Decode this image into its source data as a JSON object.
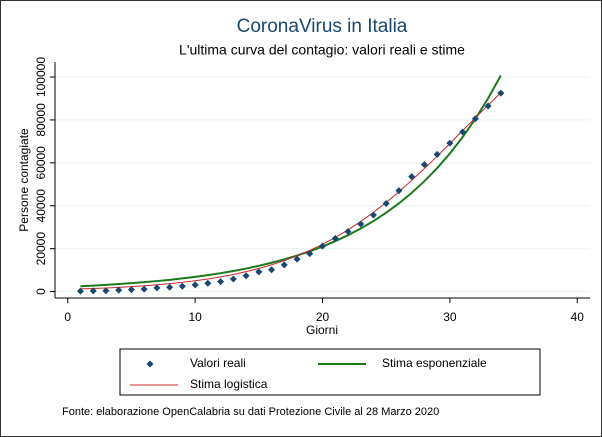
{
  "chart_data": {
    "type": "line",
    "title": "CoronaVirus in Italia",
    "subtitle": "L'ultima curva del contagio: valori reali e stime",
    "x_label": "Giorni",
    "y_label": "Persone contagiate",
    "note": "Fonte: elaborazione OpenCalabria su dati Protezione Civile al 28 Marzo 2020",
    "x": [
      1,
      2,
      3,
      4,
      5,
      6,
      7,
      8,
      9,
      10,
      11,
      12,
      13,
      14,
      15,
      16,
      17,
      18,
      19,
      20,
      21,
      22,
      23,
      24,
      25,
      26,
      27,
      28,
      29,
      30,
      31,
      32,
      33,
      34
    ],
    "series": [
      {
        "name": "Valori reali",
        "style": "markers",
        "color": "#1a476f",
        "values": [
          229,
          322,
          400,
          650,
          888,
          1128,
          1694,
          2036,
          2502,
          3089,
          3858,
          4636,
          5883,
          7375,
          9172,
          10149,
          12462,
          15113,
          17660,
          21157,
          24747,
          27980,
          31506,
          35713,
          41035,
          47021,
          53578,
          59138,
          63927,
          69176,
          74386,
          80539,
          86498,
          92472
        ]
      },
      {
        "name": "Stima esponenziale",
        "style": "line",
        "color": "#1a7a1a",
        "values": [
          2500,
          2796,
          3127,
          3498,
          3913,
          4376,
          4895,
          5475,
          6124,
          6850,
          7662,
          8570,
          9586,
          10722,
          11993,
          13414,
          15004,
          16782,
          18771,
          20994,
          23483,
          26266,
          29379,
          32861,
          36755,
          41113,
          45985,
          51434,
          57529,
          64348,
          71974,
          80505,
          90046,
          100716
        ]
      },
      {
        "name": "Stima logistica",
        "style": "thin-line",
        "color": "#c8282d",
        "values": [
          1225,
          1435,
          1681,
          1969,
          2305,
          2697,
          3154,
          3688,
          4313,
          5036,
          5875,
          6849,
          7977,
          9281,
          10760,
          12479,
          14433,
          16659,
          19179,
          22019,
          25197,
          28729,
          32630,
          36900,
          41528,
          46497,
          51796,
          57339,
          63105,
          69000,
          75000,
          80994,
          86906,
          92650
        ]
      }
    ],
    "xlim": [
      -1,
      41
    ],
    "xticks": [
      0,
      10,
      20,
      30,
      40
    ],
    "ylim": [
      -3000,
      107000
    ],
    "yticks": [
      0,
      20000,
      40000,
      60000,
      80000,
      100000
    ],
    "grid": true
  }
}
